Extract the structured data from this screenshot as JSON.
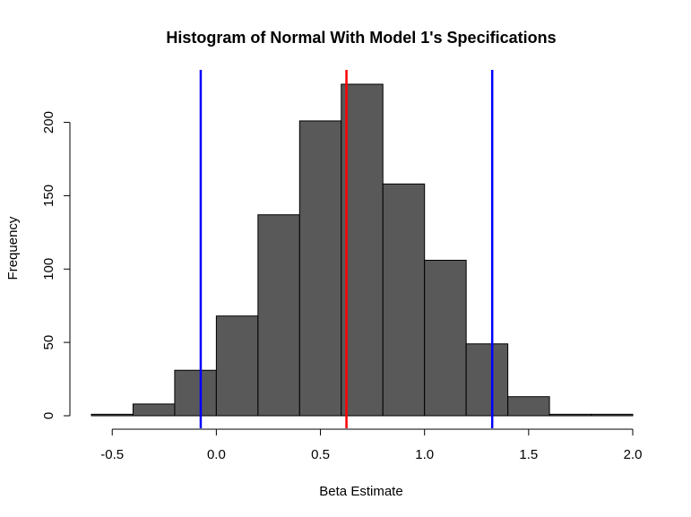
{
  "chart_data": {
    "type": "histogram",
    "title": "Histogram of Normal With Model 1's Specifications",
    "xlabel": "Beta Estimate",
    "ylabel": "Frequency",
    "xlim": [
      -0.6,
      2.0
    ],
    "ylim": [
      0,
      226
    ],
    "x_ticks": [
      "-0.5",
      "0.0",
      "0.5",
      "1.0",
      "1.5",
      "2.0"
    ],
    "y_ticks": [
      "0",
      "50",
      "100",
      "150",
      "200"
    ],
    "bin_edges": [
      -0.6,
      -0.4,
      -0.2,
      0.0,
      0.2,
      0.4,
      0.6,
      0.8,
      1.0,
      1.2,
      1.4,
      1.6,
      1.8,
      2.0
    ],
    "values": [
      1,
      8,
      31,
      68,
      137,
      201,
      226,
      158,
      106,
      49,
      13,
      1,
      1
    ],
    "vlines": [
      {
        "x": -0.075,
        "color": "#0000ff"
      },
      {
        "x": 0.625,
        "color": "#ff0000"
      },
      {
        "x": 1.325,
        "color": "#0000ff"
      }
    ],
    "bar_fill": "#595959",
    "bar_stroke": "#000000",
    "grid": false
  }
}
